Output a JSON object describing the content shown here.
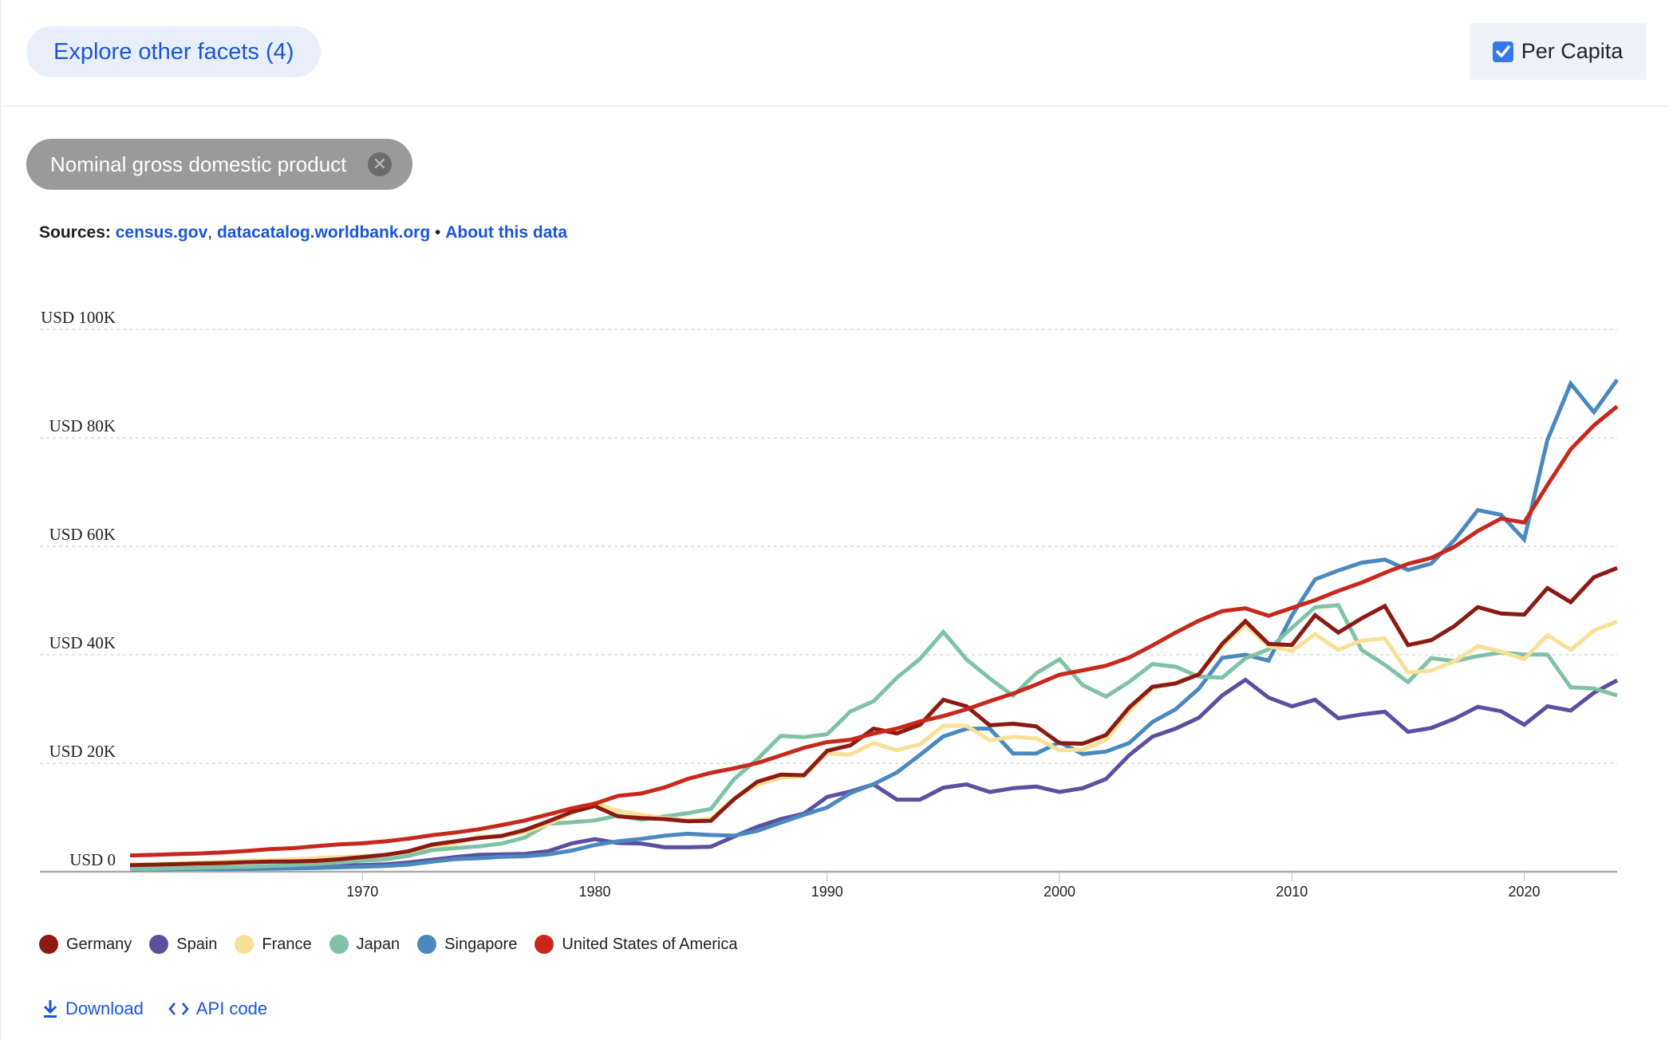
{
  "header": {
    "facets_button": "Explore other facets (4)",
    "per_capita_label": "Per Capita",
    "per_capita_checked": true
  },
  "filter_chip": {
    "label": "Nominal gross domestic product"
  },
  "sources": {
    "label": "Sources:",
    "links": [
      "census.gov",
      "datacatalog.worldbank.org"
    ],
    "separator": "•",
    "about": "About this data"
  },
  "footer": {
    "download": "Download",
    "api_code": "API code"
  },
  "colors": {
    "Germany": "#8b1a12",
    "Spain": "#5b4fa0",
    "France": "#f8e096",
    "Japan": "#7fc2a6",
    "Singapore": "#4a88be",
    "United States of America": "#c8281c"
  },
  "chart_data": {
    "type": "line",
    "title": "",
    "xlabel": "",
    "ylabel": "",
    "xlim": [
      1960,
      2024
    ],
    "ylim": [
      0,
      100000
    ],
    "y_ticks": [
      0,
      20000,
      40000,
      60000,
      80000,
      100000
    ],
    "y_tick_labels": [
      "USD 0",
      "USD 20K",
      "USD 40K",
      "USD 60K",
      "USD 80K",
      "USD 100K"
    ],
    "x_ticks": [
      1970,
      1980,
      1990,
      2000,
      2010,
      2020
    ],
    "x_tick_labels": [
      "1970",
      "1980",
      "1990",
      "2000",
      "2010",
      "2020"
    ],
    "grid": true,
    "legend_position": "bottom-left",
    "x": [
      1960,
      1961,
      1962,
      1963,
      1964,
      1965,
      1966,
      1967,
      1968,
      1969,
      1970,
      1971,
      1972,
      1973,
      1974,
      1975,
      1976,
      1977,
      1978,
      1979,
      1980,
      1981,
      1982,
      1983,
      1984,
      1985,
      1986,
      1987,
      1988,
      1989,
      1990,
      1991,
      1992,
      1993,
      1994,
      1995,
      1996,
      1997,
      1998,
      1999,
      2000,
      2001,
      2002,
      2003,
      2004,
      2005,
      2006,
      2007,
      2008,
      2009,
      2010,
      2011,
      2012,
      2013,
      2014,
      2015,
      2016,
      2017,
      2018,
      2019,
      2020,
      2021,
      2022,
      2023,
      2024
    ],
    "series": [
      {
        "name": "Germany",
        "values": [
          1200,
          1300,
          1400,
          1500,
          1600,
          1750,
          1850,
          1900,
          2000,
          2300,
          2700,
          3100,
          3800,
          5000,
          5600,
          6200,
          6600,
          7700,
          9300,
          11000,
          12100,
          10200,
          9900,
          9700,
          9300,
          9400,
          13400,
          16600,
          17900,
          17800,
          22300,
          23300,
          26400,
          25500,
          27100,
          31700,
          30500,
          27000,
          27300,
          26800,
          23700,
          23600,
          25200,
          30300,
          34100,
          34700,
          36400,
          42000,
          46200,
          42000,
          41800,
          47300,
          44100,
          46700,
          49000,
          41800,
          42700,
          45300,
          48800,
          47600,
          47400,
          52300,
          49700,
          54300,
          56000
        ]
      },
      {
        "name": "Spain",
        "values": [
          400,
          450,
          520,
          600,
          680,
          780,
          900,
          1000,
          1050,
          1200,
          1200,
          1350,
          1700,
          2200,
          2700,
          3100,
          3200,
          3300,
          3800,
          5200,
          6000,
          5300,
          5200,
          4500,
          4500,
          4600,
          6500,
          8300,
          9700,
          10700,
          13800,
          14800,
          16100,
          13300,
          13300,
          15500,
          16100,
          14700,
          15400,
          15700,
          14700,
          15400,
          17100,
          21500,
          24900,
          26400,
          28400,
          32500,
          35400,
          32100,
          30500,
          31700,
          28300,
          29000,
          29500,
          25800,
          26500,
          28200,
          30400,
          29600,
          27100,
          30500,
          29700,
          33000,
          35300
        ]
      },
      {
        "name": "France",
        "values": [
          1300,
          1400,
          1550,
          1700,
          1850,
          2000,
          2150,
          2300,
          2500,
          2700,
          2900,
          3100,
          3700,
          4800,
          5200,
          6500,
          6600,
          7300,
          8800,
          10800,
          12700,
          11200,
          10500,
          9900,
          9500,
          9800,
          13500,
          16000,
          17300,
          17600,
          21800,
          21600,
          23700,
          22400,
          23500,
          26900,
          26900,
          24200,
          24900,
          24600,
          22400,
          22500,
          24300,
          29700,
          33800,
          34800,
          36500,
          41600,
          45500,
          41600,
          40700,
          43800,
          40900,
          42600,
          43000,
          36700,
          37100,
          38800,
          41600,
          40600,
          39200,
          43600,
          40900,
          44500,
          46100
        ]
      },
      {
        "name": "Japan",
        "values": [
          500,
          560,
          640,
          720,
          840,
          920,
          1060,
          1230,
          1450,
          1670,
          2040,
          2270,
          2950,
          3990,
          4350,
          4660,
          5200,
          6330,
          8820,
          9100,
          9460,
          10360,
          9580,
          10210,
          10790,
          11580,
          17110,
          20750,
          25050,
          24810,
          25360,
          29550,
          31460,
          35770,
          39270,
          44200,
          39150,
          35640,
          32440,
          36610,
          39170,
          34410,
          32290,
          35000,
          38300,
          37800,
          35990,
          35780,
          39340,
          41000,
          44970,
          48760,
          49140,
          40900,
          38160,
          34960,
          39380,
          38830,
          39750,
          40410,
          40040,
          40060,
          34000,
          33800,
          32500
        ]
      },
      {
        "name": "Singapore",
        "values": [
          430,
          450,
          470,
          510,
          490,
          520,
          570,
          630,
          710,
          810,
          930,
          1070,
          1320,
          1850,
          2340,
          2490,
          2750,
          2850,
          3190,
          3900,
          4930,
          5600,
          6060,
          6630,
          7000,
          6760,
          6650,
          7540,
          9050,
          10500,
          11860,
          14500,
          16140,
          18300,
          21550,
          24940,
          26350,
          26400,
          21800,
          21800,
          23850,
          21700,
          22160,
          23730,
          27610,
          29960,
          33770,
          39430,
          40010,
          38930,
          47240,
          53890,
          55550,
          56970,
          57560,
          55650,
          56830,
          61160,
          66680,
          65830,
          61270,
          79600,
          90000,
          84730,
          90700
        ]
      },
      {
        "name": "United States of America",
        "values": [
          3000,
          3100,
          3250,
          3370,
          3570,
          3830,
          4150,
          4340,
          4700,
          5030,
          5230,
          5610,
          6110,
          6740,
          7240,
          7820,
          8610,
          9450,
          10560,
          11670,
          12550,
          13980,
          14430,
          15540,
          17120,
          18240,
          19070,
          20040,
          21420,
          22860,
          23890,
          24340,
          25470,
          26400,
          27700,
          28700,
          29950,
          31450,
          32850,
          34510,
          36330,
          37130,
          37990,
          39490,
          41720,
          44110,
          46300,
          48050,
          48570,
          47190,
          48650,
          50070,
          51780,
          53290,
          55120,
          56760,
          57870,
          59910,
          62820,
          65120,
          64400,
          71300,
          77900,
          82300,
          85800
        ]
      }
    ]
  }
}
